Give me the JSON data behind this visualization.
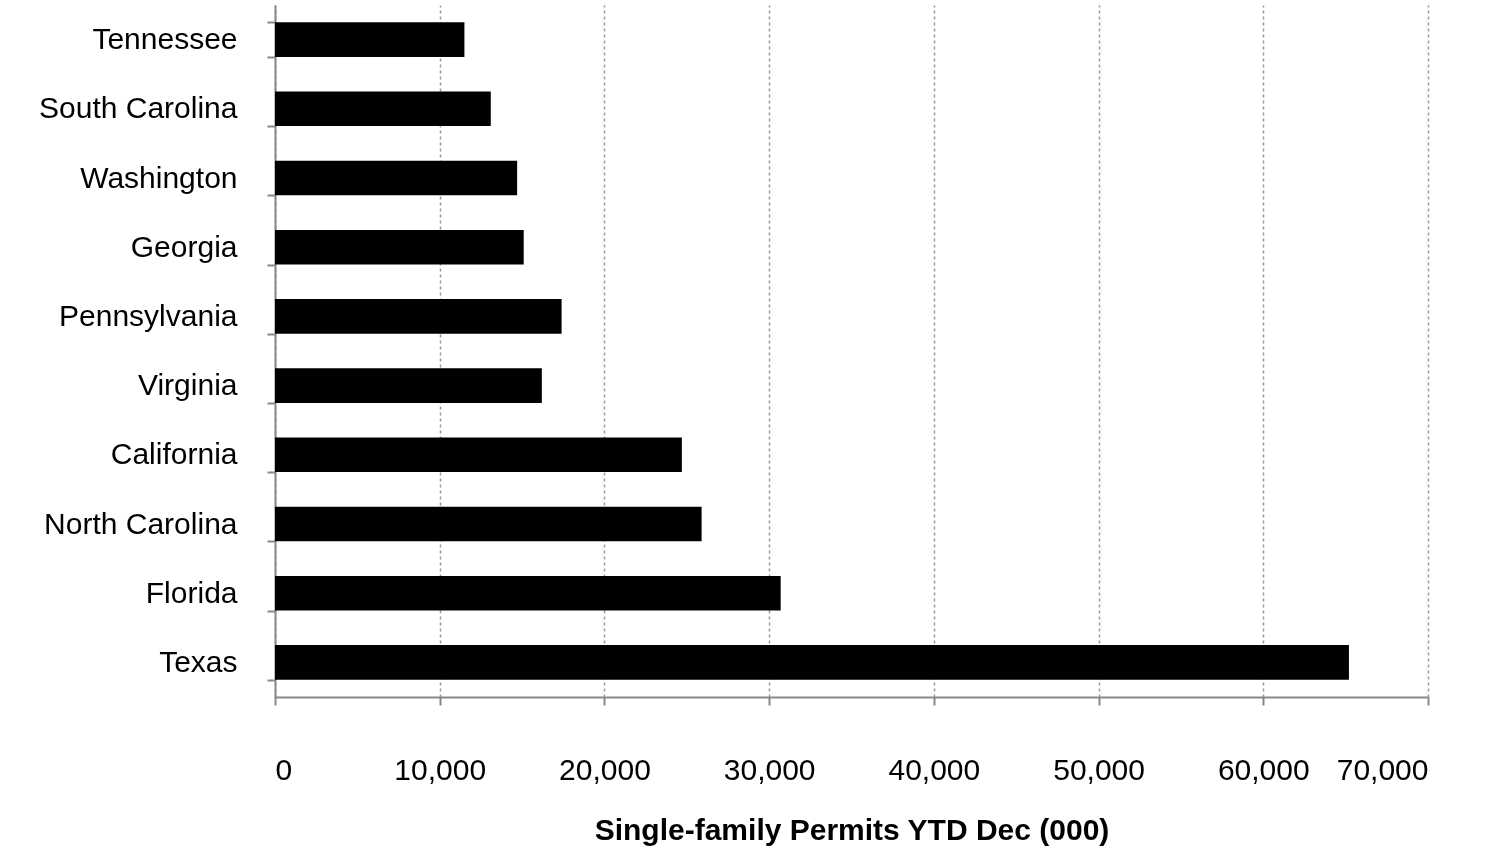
{
  "chart_data": {
    "type": "bar",
    "orientation": "horizontal",
    "xlabel": "Single-family  Permits YTD Dec (000)",
    "categories": [
      "Tennessee",
      "South Carolina",
      "Washington",
      "Georgia",
      "Pennsylvania",
      "Virginia",
      "California",
      "North Carolina",
      "Florida",
      "Texas"
    ],
    "values": [
      11500,
      13100,
      14700,
      15100,
      17400,
      16200,
      24700,
      25900,
      30700,
      65200
    ],
    "color": "#000000",
    "xlim": [
      0,
      70000
    ],
    "xticks": [
      0,
      {
        "value": 10000,
        "label": "10,000"
      },
      {
        "value": 20000,
        "label": "20,000"
      },
      {
        "value": 30000,
        "label": "30,000"
      },
      {
        "value": 40000,
        "label": "40,000"
      },
      {
        "value": 50000,
        "label": "50,000"
      },
      {
        "value": 60000,
        "label": "60,000"
      },
      {
        "value": 70000,
        "label": "70,000"
      }
    ],
    "grid": "x"
  }
}
